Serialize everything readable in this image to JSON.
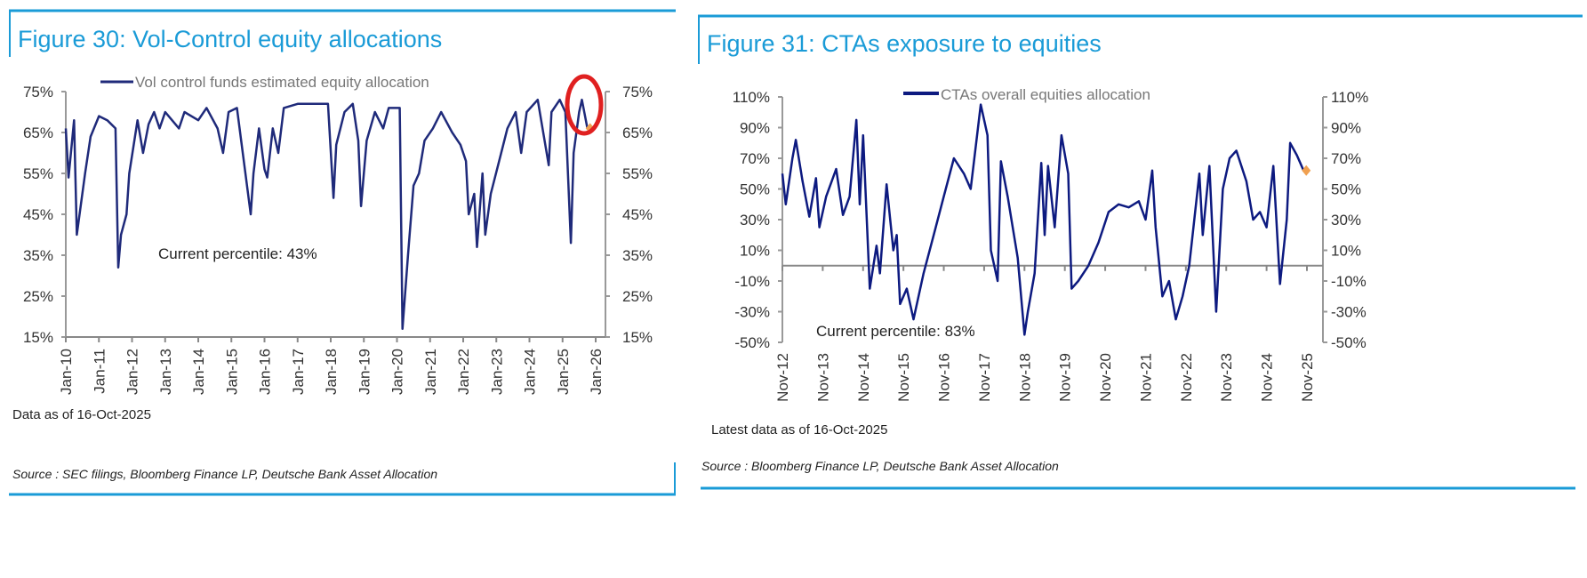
{
  "chart_data": [
    {
      "type": "line",
      "title": "Figure 30: Vol-Control equity allocations",
      "legend": "Vol control funds estimated equity allocation",
      "legend_placement": "top",
      "annotation": "Current percentile: 43%",
      "note": "Data as of 16-Oct-2025",
      "source": "Source : SEC filings, Bloomberg Finance LP, Deutsche Bank Asset Allocation",
      "ylim": [
        0.15,
        0.75
      ],
      "yticks": [
        "75%",
        "65%",
        "55%",
        "45%",
        "35%",
        "25%",
        "15%"
      ],
      "xticks": [
        "Jan-10",
        "Jan-11",
        "Jan-12",
        "Jan-13",
        "Jan-14",
        "Jan-15",
        "Jan-16",
        "Jan-17",
        "Jan-18",
        "Jan-19",
        "Jan-20",
        "Jan-21",
        "Jan-22",
        "Jan-23",
        "Jan-24",
        "Jan-25",
        "Jan-26"
      ],
      "dual_y_axis": true,
      "grid": false,
      "line_color": "#1f2a7a",
      "marker_color": "#f0a050",
      "highlight_circle_color": "#e02020",
      "latest_point": {
        "x": "2025-10",
        "y": 0.66
      },
      "series": [
        {
          "name": "Vol control funds estimated equity allocation",
          "points": [
            [
              "2010-01",
              0.66
            ],
            [
              "2010-02",
              0.54
            ],
            [
              "2010-04",
              0.68
            ],
            [
              "2010-05",
              0.4
            ],
            [
              "2010-06",
              0.45
            ],
            [
              "2010-08",
              0.55
            ],
            [
              "2010-10",
              0.64
            ],
            [
              "2011-01",
              0.69
            ],
            [
              "2011-04",
              0.68
            ],
            [
              "2011-07",
              0.66
            ],
            [
              "2011-08",
              0.32
            ],
            [
              "2011-09",
              0.4
            ],
            [
              "2011-11",
              0.45
            ],
            [
              "2011-12",
              0.55
            ],
            [
              "2012-03",
              0.68
            ],
            [
              "2012-05",
              0.6
            ],
            [
              "2012-07",
              0.67
            ],
            [
              "2012-09",
              0.7
            ],
            [
              "2012-11",
              0.66
            ],
            [
              "2013-01",
              0.7
            ],
            [
              "2013-06",
              0.66
            ],
            [
              "2013-08",
              0.7
            ],
            [
              "2014-01",
              0.68
            ],
            [
              "2014-04",
              0.71
            ],
            [
              "2014-08",
              0.66
            ],
            [
              "2014-10",
              0.6
            ],
            [
              "2014-12",
              0.7
            ],
            [
              "2015-03",
              0.71
            ],
            [
              "2015-08",
              0.45
            ],
            [
              "2015-09",
              0.55
            ],
            [
              "2015-11",
              0.66
            ],
            [
              "2016-01",
              0.56
            ],
            [
              "2016-02",
              0.54
            ],
            [
              "2016-04",
              0.66
            ],
            [
              "2016-06",
              0.6
            ],
            [
              "2016-08",
              0.71
            ],
            [
              "2017-01",
              0.72
            ],
            [
              "2017-12",
              0.72
            ],
            [
              "2018-02",
              0.49
            ],
            [
              "2018-03",
              0.62
            ],
            [
              "2018-06",
              0.7
            ],
            [
              "2018-09",
              0.72
            ],
            [
              "2018-11",
              0.63
            ],
            [
              "2018-12",
              0.47
            ],
            [
              "2019-02",
              0.63
            ],
            [
              "2019-05",
              0.7
            ],
            [
              "2019-08",
              0.66
            ],
            [
              "2019-10",
              0.71
            ],
            [
              "2020-02",
              0.71
            ],
            [
              "2020-03",
              0.17
            ],
            [
              "2020-05",
              0.35
            ],
            [
              "2020-07",
              0.52
            ],
            [
              "2020-09",
              0.55
            ],
            [
              "2020-11",
              0.63
            ],
            [
              "2021-02",
              0.66
            ],
            [
              "2021-05",
              0.7
            ],
            [
              "2021-09",
              0.65
            ],
            [
              "2021-12",
              0.62
            ],
            [
              "2022-02",
              0.58
            ],
            [
              "2022-03",
              0.45
            ],
            [
              "2022-05",
              0.5
            ],
            [
              "2022-06",
              0.37
            ],
            [
              "2022-08",
              0.55
            ],
            [
              "2022-09",
              0.4
            ],
            [
              "2022-11",
              0.5
            ],
            [
              "2023-02",
              0.58
            ],
            [
              "2023-05",
              0.66
            ],
            [
              "2023-08",
              0.7
            ],
            [
              "2023-10",
              0.6
            ],
            [
              "2023-12",
              0.7
            ],
            [
              "2024-04",
              0.73
            ],
            [
              "2024-08",
              0.57
            ],
            [
              "2024-09",
              0.7
            ],
            [
              "2024-12",
              0.73
            ],
            [
              "2025-02",
              0.7
            ],
            [
              "2025-04",
              0.38
            ],
            [
              "2025-05",
              0.6
            ],
            [
              "2025-07",
              0.7
            ],
            [
              "2025-08",
              0.73
            ],
            [
              "2025-10",
              0.66
            ]
          ]
        }
      ]
    },
    {
      "type": "line",
      "title": "Figure 31: CTAs exposure to equities",
      "legend": "CTAs overall equities allocation",
      "legend_placement": "top",
      "annotation": "Current percentile: 83%",
      "note": "Latest data as of 16-Oct-2025",
      "source": "Source : Bloomberg Finance LP, Deutsche Bank Asset Allocation",
      "ylim": [
        -0.5,
        1.1
      ],
      "yticks": [
        "110%",
        "90%",
        "70%",
        "50%",
        "30%",
        "10%",
        "-10%",
        "-30%",
        "-50%"
      ],
      "xticks": [
        "Nov-12",
        "Nov-13",
        "Nov-14",
        "Nov-15",
        "Nov-16",
        "Nov-17",
        "Nov-18",
        "Nov-19",
        "Nov-20",
        "Nov-21",
        "Nov-22",
        "Nov-23",
        "Nov-24",
        "Nov-25"
      ],
      "dual_y_axis": true,
      "zero_line": true,
      "grid": false,
      "line_color": "#0d1a80",
      "marker_color": "#f0a050",
      "latest_point": {
        "x": "2025-10",
        "y": 0.62
      },
      "series": [
        {
          "name": "CTAs overall equities allocation",
          "points": [
            [
              "2012-11",
              0.6
            ],
            [
              "2012-12",
              0.4
            ],
            [
              "2013-02",
              0.7
            ],
            [
              "2013-03",
              0.82
            ],
            [
              "2013-05",
              0.55
            ],
            [
              "2013-07",
              0.32
            ],
            [
              "2013-09",
              0.57
            ],
            [
              "2013-10",
              0.25
            ],
            [
              "2013-12",
              0.45
            ],
            [
              "2014-03",
              0.63
            ],
            [
              "2014-05",
              0.33
            ],
            [
              "2014-07",
              0.45
            ],
            [
              "2014-09",
              0.95
            ],
            [
              "2014-10",
              0.4
            ],
            [
              "2014-11",
              0.85
            ],
            [
              "2015-01",
              -0.15
            ],
            [
              "2015-03",
              0.13
            ],
            [
              "2015-04",
              -0.05
            ],
            [
              "2015-06",
              0.53
            ],
            [
              "2015-08",
              0.1
            ],
            [
              "2015-09",
              0.2
            ],
            [
              "2015-10",
              -0.25
            ],
            [
              "2015-12",
              -0.15
            ],
            [
              "2016-02",
              -0.35
            ],
            [
              "2016-05",
              -0.05
            ],
            [
              "2016-08",
              0.2
            ],
            [
              "2016-11",
              0.45
            ],
            [
              "2017-02",
              0.7
            ],
            [
              "2017-05",
              0.6
            ],
            [
              "2017-07",
              0.5
            ],
            [
              "2017-10",
              1.05
            ],
            [
              "2017-12",
              0.85
            ],
            [
              "2018-01",
              0.1
            ],
            [
              "2018-03",
              -0.1
            ],
            [
              "2018-04",
              0.68
            ],
            [
              "2018-06",
              0.45
            ],
            [
              "2018-09",
              0.05
            ],
            [
              "2018-11",
              -0.45
            ],
            [
              "2018-12",
              -0.3
            ],
            [
              "2019-02",
              -0.05
            ],
            [
              "2019-04",
              0.67
            ],
            [
              "2019-05",
              0.2
            ],
            [
              "2019-06",
              0.65
            ],
            [
              "2019-08",
              0.25
            ],
            [
              "2019-10",
              0.85
            ],
            [
              "2019-12",
              0.6
            ],
            [
              "2020-01",
              -0.15
            ],
            [
              "2020-03",
              -0.1
            ],
            [
              "2020-06",
              0.0
            ],
            [
              "2020-09",
              0.15
            ],
            [
              "2020-12",
              0.35
            ],
            [
              "2021-03",
              0.4
            ],
            [
              "2021-06",
              0.38
            ],
            [
              "2021-09",
              0.42
            ],
            [
              "2021-11",
              0.3
            ],
            [
              "2022-01",
              0.62
            ],
            [
              "2022-02",
              0.25
            ],
            [
              "2022-04",
              -0.2
            ],
            [
              "2022-06",
              -0.1
            ],
            [
              "2022-08",
              -0.35
            ],
            [
              "2022-10",
              -0.2
            ],
            [
              "2022-12",
              0.0
            ],
            [
              "2023-03",
              0.6
            ],
            [
              "2023-04",
              0.2
            ],
            [
              "2023-06",
              0.65
            ],
            [
              "2023-08",
              -0.3
            ],
            [
              "2023-10",
              0.5
            ],
            [
              "2023-12",
              0.7
            ],
            [
              "2024-02",
              0.75
            ],
            [
              "2024-05",
              0.55
            ],
            [
              "2024-07",
              0.3
            ],
            [
              "2024-09",
              0.35
            ],
            [
              "2024-11",
              0.25
            ],
            [
              "2025-01",
              0.65
            ],
            [
              "2025-03",
              -0.12
            ],
            [
              "2025-05",
              0.3
            ],
            [
              "2025-06",
              0.8
            ],
            [
              "2025-08",
              0.72
            ],
            [
              "2025-10",
              0.62
            ]
          ]
        }
      ]
    }
  ]
}
